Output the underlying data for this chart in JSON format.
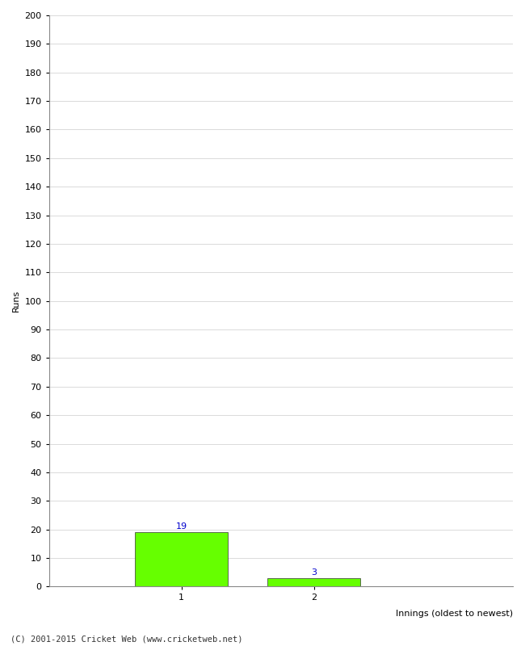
{
  "categories": [
    1,
    2
  ],
  "values": [
    19,
    3
  ],
  "bar_color": "#66ff00",
  "bar_edgecolor": "#333333",
  "ylabel": "Runs",
  "xlabel": "Innings (oldest to newest)",
  "ylim": [
    0,
    200
  ],
  "yticks": [
    0,
    10,
    20,
    30,
    40,
    50,
    60,
    70,
    80,
    90,
    100,
    110,
    120,
    130,
    140,
    150,
    160,
    170,
    180,
    190,
    200
  ],
  "value_labels": [
    "19",
    "3"
  ],
  "value_label_color": "#0000cc",
  "footer": "(C) 2001-2015 Cricket Web (www.cricketweb.net)",
  "background_color": "#ffffff",
  "grid_color": "#cccccc",
  "bar_width": 0.7,
  "xlim": [
    0,
    3.5
  ]
}
